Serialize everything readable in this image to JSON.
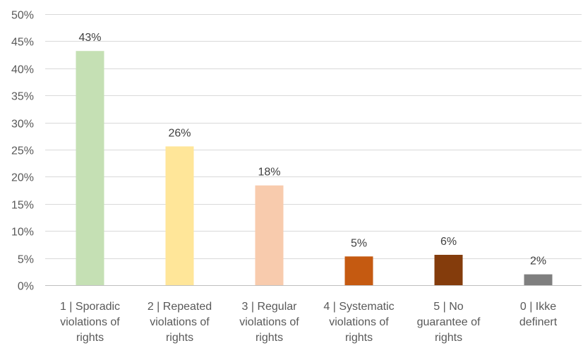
{
  "chart_data": {
    "type": "bar",
    "title": "",
    "xlabel": "",
    "ylabel": "",
    "ylim": [
      0,
      50
    ],
    "yticks": [
      0,
      5,
      10,
      15,
      20,
      25,
      30,
      35,
      40,
      45,
      50
    ],
    "ytick_labels": [
      "0%",
      "5%",
      "10%",
      "15%",
      "20%",
      "25%",
      "30%",
      "35%",
      "40%",
      "45%",
      "50%"
    ],
    "grid": true,
    "legend": "none",
    "categories": [
      [
        "1 | Sporadic",
        "violations of",
        "rights"
      ],
      [
        "2 | Repeated",
        "violations of",
        "rights"
      ],
      [
        "3 | Regular",
        "violations of",
        "rights"
      ],
      [
        "4 | Systematic",
        "violations of",
        "rights"
      ],
      [
        "5 | No",
        "guarantee of",
        "rights"
      ],
      [
        "0 | Ikke",
        "definert"
      ]
    ],
    "values": [
      43.2,
      25.6,
      18.4,
      5.3,
      5.6,
      2.0
    ],
    "data_labels": [
      "43%",
      "26%",
      "18%",
      "5%",
      "6%",
      "2%"
    ],
    "colors": [
      "#c5e0b4",
      "#ffe699",
      "#f8cbad",
      "#c55a11",
      "#843c0c",
      "#7f7f7f"
    ]
  }
}
